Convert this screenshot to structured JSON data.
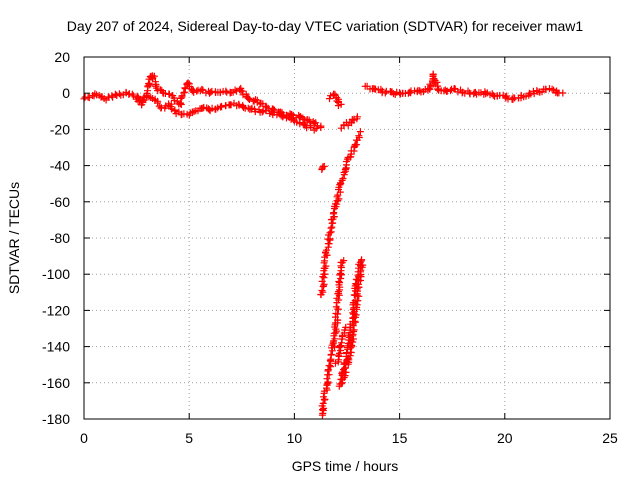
{
  "chart_data": {
    "type": "scatter",
    "title": "Day 207 of 2024, Sidereal Day-to-day VTEC variation (SDTVAR) for receiver maw1",
    "xlabel": "GPS time / hours",
    "ylabel": "SDTVAR / TECUs",
    "xlim": [
      0,
      25
    ],
    "ylim": [
      -180,
      20
    ],
    "xticks": [
      0,
      5,
      10,
      15,
      20,
      25
    ],
    "yticks": [
      -180,
      -160,
      -140,
      -120,
      -100,
      -80,
      -60,
      -40,
      -20,
      0,
      20
    ],
    "grid": true,
    "marker": "+",
    "series": [
      {
        "name": "SDTVAR",
        "color": "#ff0000",
        "trace_segments": [
          [
            [
              0.0,
              -3
            ],
            [
              0.5,
              -1
            ],
            [
              1.0,
              -3
            ],
            [
              1.5,
              -1
            ],
            [
              2.0,
              0
            ],
            [
              2.5,
              -2
            ],
            [
              2.8,
              -4
            ],
            [
              3.1,
              5
            ],
            [
              3.2,
              10
            ],
            [
              3.3,
              9
            ],
            [
              3.5,
              2
            ],
            [
              3.8,
              0
            ],
            [
              4.2,
              -2
            ],
            [
              4.6,
              -6
            ],
            [
              4.9,
              6
            ],
            [
              5.2,
              1
            ],
            [
              5.6,
              2
            ],
            [
              6.0,
              0
            ],
            [
              6.5,
              1
            ],
            [
              7.0,
              0
            ],
            [
              7.4,
              2
            ],
            [
              7.8,
              -3
            ],
            [
              8.2,
              -4
            ],
            [
              8.6,
              -7
            ],
            [
              9.0,
              -9
            ],
            [
              9.4,
              -11
            ],
            [
              9.8,
              -12
            ],
            [
              10.2,
              -13
            ],
            [
              10.6,
              -15
            ],
            [
              11.0,
              -17
            ],
            [
              11.3,
              -19
            ]
          ],
          [
            [
              4.0,
              -6
            ],
            [
              4.3,
              -10
            ],
            [
              4.7,
              -12
            ],
            [
              5.2,
              -11
            ],
            [
              5.6,
              -8
            ],
            [
              6.0,
              -9
            ],
            [
              6.5,
              -8
            ],
            [
              7.0,
              -6
            ],
            [
              7.5,
              -7
            ],
            [
              8.0,
              -9
            ],
            [
              8.5,
              -10
            ],
            [
              9.0,
              -11
            ],
            [
              9.5,
              -13
            ],
            [
              10.0,
              -15
            ],
            [
              10.5,
              -18
            ],
            [
              11.0,
              -20
            ]
          ],
          [
            [
              2.5,
              -3
            ],
            [
              2.7,
              -6
            ],
            [
              3.0,
              -2
            ],
            [
              3.4,
              -4
            ],
            [
              3.7,
              -8
            ],
            [
              4.1,
              -6
            ]
          ],
          [
            [
              11.7,
              -3
            ],
            [
              11.9,
              0
            ],
            [
              12.1,
              -4
            ]
          ],
          [
            [
              12.2,
              -19
            ],
            [
              12.5,
              -17
            ],
            [
              12.8,
              -15
            ],
            [
              13.0,
              -13
            ]
          ],
          [
            [
              12.0,
              -5
            ],
            [
              12.2,
              -7
            ]
          ],
          [
            [
              13.4,
              4
            ],
            [
              13.8,
              2
            ],
            [
              14.2,
              1
            ],
            [
              14.6,
              0
            ],
            [
              15.0,
              0
            ],
            [
              15.5,
              1
            ],
            [
              16.0,
              1
            ],
            [
              16.4,
              2
            ],
            [
              16.6,
              10
            ],
            [
              16.8,
              2
            ],
            [
              17.2,
              1
            ],
            [
              17.6,
              2
            ],
            [
              18.0,
              1
            ],
            [
              18.5,
              0
            ],
            [
              19.0,
              0
            ],
            [
              19.5,
              -1
            ],
            [
              20.0,
              -2
            ],
            [
              20.4,
              -3
            ],
            [
              20.8,
              -2
            ],
            [
              21.2,
              0
            ],
            [
              21.6,
              1
            ],
            [
              22.0,
              2
            ],
            [
              22.4,
              1
            ],
            [
              22.7,
              0
            ]
          ],
          [
            [
              11.25,
              -42
            ],
            [
              11.45,
              -40
            ]
          ],
          [
            [
              11.3,
              -112
            ],
            [
              11.4,
              -100
            ],
            [
              11.5,
              -90
            ],
            [
              11.65,
              -80
            ],
            [
              11.8,
              -70
            ],
            [
              11.95,
              -62
            ],
            [
              12.05,
              -60
            ],
            [
              12.2,
              -50
            ],
            [
              12.4,
              -42
            ],
            [
              12.6,
              -36
            ],
            [
              12.85,
              -30
            ],
            [
              13.1,
              -22
            ]
          ],
          [
            [
              11.3,
              -178
            ],
            [
              11.4,
              -170
            ],
            [
              11.55,
              -160
            ],
            [
              11.7,
              -150
            ],
            [
              11.85,
              -140
            ],
            [
              11.95,
              -132
            ],
            [
              12.0,
              -125
            ],
            [
              12.1,
              -110
            ],
            [
              12.2,
              -100
            ],
            [
              12.3,
              -92
            ]
          ],
          [
            [
              12.0,
              -150
            ],
            [
              12.2,
              -140
            ],
            [
              12.4,
              -130
            ]
          ],
          [
            [
              12.15,
              -162
            ],
            [
              12.3,
              -155
            ],
            [
              12.45,
              -148
            ],
            [
              12.6,
              -135
            ],
            [
              12.8,
              -120
            ],
            [
              12.95,
              -105
            ],
            [
              13.1,
              -95
            ],
            [
              13.2,
              -92
            ]
          ],
          [
            [
              12.3,
              -160
            ],
            [
              12.5,
              -150
            ],
            [
              12.7,
              -140
            ],
            [
              12.9,
              -122
            ],
            [
              13.05,
              -108
            ],
            [
              13.2,
              -95
            ]
          ]
        ]
      }
    ]
  }
}
